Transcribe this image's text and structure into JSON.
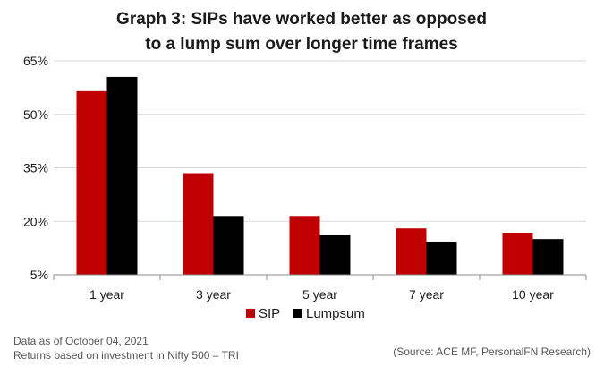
{
  "chart_data": {
    "type": "bar",
    "title_lines": [
      "Graph 3: SIPs have worked better as opposed",
      "to a lump sum over longer time frames"
    ],
    "categories": [
      "1 year",
      "3 year",
      "5 year",
      "7 year",
      "10 year"
    ],
    "series": [
      {
        "name": "SIP",
        "color": "#c00000",
        "values": [
          56.5,
          33.5,
          21.5,
          18.0,
          16.8
        ]
      },
      {
        "name": "Lumpsum",
        "color": "#000000",
        "values": [
          60.5,
          21.5,
          16.3,
          14.3,
          15.0
        ]
      }
    ],
    "ylim": [
      5,
      65
    ],
    "yticks": [
      5,
      20,
      35,
      50,
      65
    ],
    "ytick_labels": [
      "5%",
      "20%",
      "35%",
      "50%",
      "65%"
    ],
    "grid": true,
    "legend_position": "bottom-center",
    "xlabel": "",
    "ylabel": ""
  },
  "notes": {
    "date_line": "Data as of October 04, 2021",
    "basis_line": "Returns based on investment in Nifty 500 – TRI",
    "source": "(Source: ACE MF, PersonalFN Research)"
  }
}
